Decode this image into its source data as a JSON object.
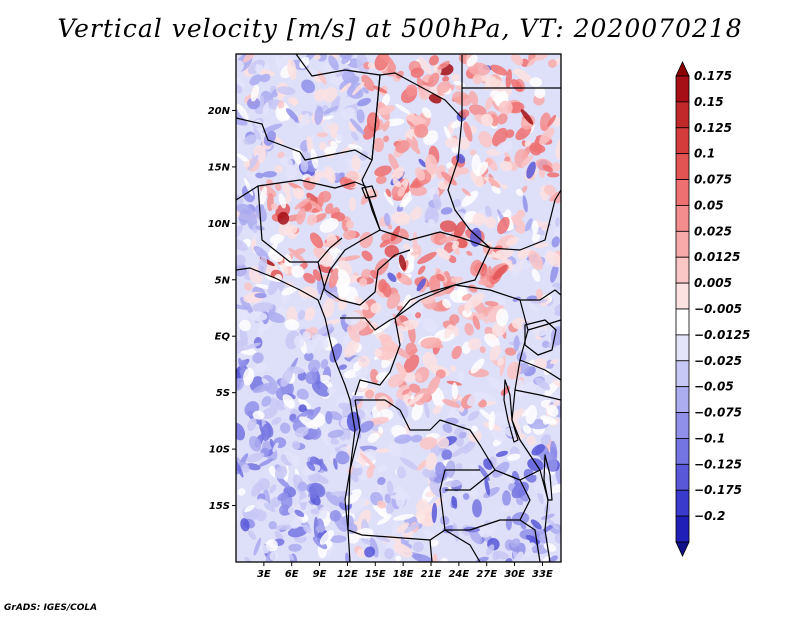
{
  "title": "Vertical velocity [m/s] at 500hPa, VT: 2020070218",
  "credit": "GrADS: IGES/COLA",
  "map": {
    "lon_range": [
      0,
      35
    ],
    "lat_range": [
      -20,
      25
    ],
    "lat_ticks": [
      {
        "value": 20,
        "label": "20N"
      },
      {
        "value": 15,
        "label": "15N"
      },
      {
        "value": 10,
        "label": "10N"
      },
      {
        "value": 5,
        "label": "5N"
      },
      {
        "value": 0,
        "label": "EQ"
      },
      {
        "value": -5,
        "label": "5S"
      },
      {
        "value": -10,
        "label": "10S"
      },
      {
        "value": -15,
        "label": "15S"
      }
    ],
    "lon_ticks": [
      {
        "value": 3,
        "label": "3E"
      },
      {
        "value": 6,
        "label": "6E"
      },
      {
        "value": 9,
        "label": "9E"
      },
      {
        "value": 12,
        "label": "12E"
      },
      {
        "value": 15,
        "label": "15E"
      },
      {
        "value": 18,
        "label": "18E"
      },
      {
        "value": 21,
        "label": "21E"
      },
      {
        "value": 24,
        "label": "24E"
      },
      {
        "value": 27,
        "label": "27E"
      },
      {
        "value": 30,
        "label": "30E"
      },
      {
        "value": 33,
        "label": "33E"
      }
    ]
  },
  "colorbar": {
    "levels": [
      {
        "label": "0.175",
        "color": "#a50f15"
      },
      {
        "label": "0.15",
        "color": "#c0282a"
      },
      {
        "label": "0.125",
        "color": "#d43c3c"
      },
      {
        "label": "0.1",
        "color": "#e25454"
      },
      {
        "label": "0.075",
        "color": "#ee7070"
      },
      {
        "label": "0.05",
        "color": "#f48e8e"
      },
      {
        "label": "0.025",
        "color": "#f8aaaa"
      },
      {
        "label": "0.0125",
        "color": "#fbc6c6"
      },
      {
        "label": "0.005",
        "color": "#fde2e2"
      },
      {
        "label": "−0.005",
        "color": "#ffffff"
      },
      {
        "label": "−0.0125",
        "color": "#e4e4fb"
      },
      {
        "label": "−0.025",
        "color": "#c8c8f6"
      },
      {
        "label": "−0.05",
        "color": "#acacf1"
      },
      {
        "label": "−0.075",
        "color": "#9090ea"
      },
      {
        "label": "−0.1",
        "color": "#7474e2"
      },
      {
        "label": "−0.125",
        "color": "#5858d8"
      },
      {
        "label": "−0.175",
        "color": "#3a3acc"
      },
      {
        "label": "−0.2",
        "color": "#2020b8"
      }
    ],
    "top_arrow_color": "#8b0000",
    "bottom_arrow_color": "#10108a"
  }
}
